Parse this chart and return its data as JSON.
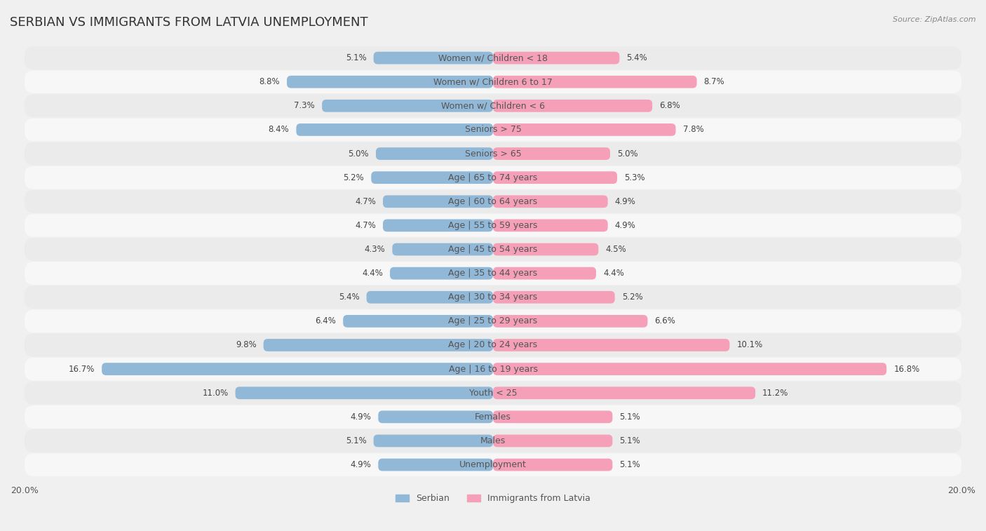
{
  "title": "SERBIAN VS IMMIGRANTS FROM LATVIA UNEMPLOYMENT",
  "source_text": "Source: ZipAtlas.com",
  "categories": [
    "Unemployment",
    "Males",
    "Females",
    "Youth < 25",
    "Age | 16 to 19 years",
    "Age | 20 to 24 years",
    "Age | 25 to 29 years",
    "Age | 30 to 34 years",
    "Age | 35 to 44 years",
    "Age | 45 to 54 years",
    "Age | 55 to 59 years",
    "Age | 60 to 64 years",
    "Age | 65 to 74 years",
    "Seniors > 65",
    "Seniors > 75",
    "Women w/ Children < 6",
    "Women w/ Children 6 to 17",
    "Women w/ Children < 18"
  ],
  "serbian_values": [
    4.9,
    5.1,
    4.9,
    11.0,
    16.7,
    9.8,
    6.4,
    5.4,
    4.4,
    4.3,
    4.7,
    4.7,
    5.2,
    5.0,
    8.4,
    7.3,
    8.8,
    5.1
  ],
  "latvia_values": [
    5.1,
    5.1,
    5.1,
    11.2,
    16.8,
    10.1,
    6.6,
    5.2,
    4.4,
    4.5,
    4.9,
    4.9,
    5.3,
    5.0,
    7.8,
    6.8,
    8.7,
    5.4
  ],
  "serbian_color": "#92b8d8",
  "latvia_color": "#f5a0b8",
  "row_color_odd": "#ebebeb",
  "row_color_even": "#f7f7f7",
  "background_color": "#f0f0f0",
  "max_value": 20.0,
  "title_fontsize": 13,
  "label_fontsize": 9,
  "value_fontsize": 8.5,
  "legend_serbian": "Serbian",
  "legend_latvia": "Immigrants from Latvia"
}
